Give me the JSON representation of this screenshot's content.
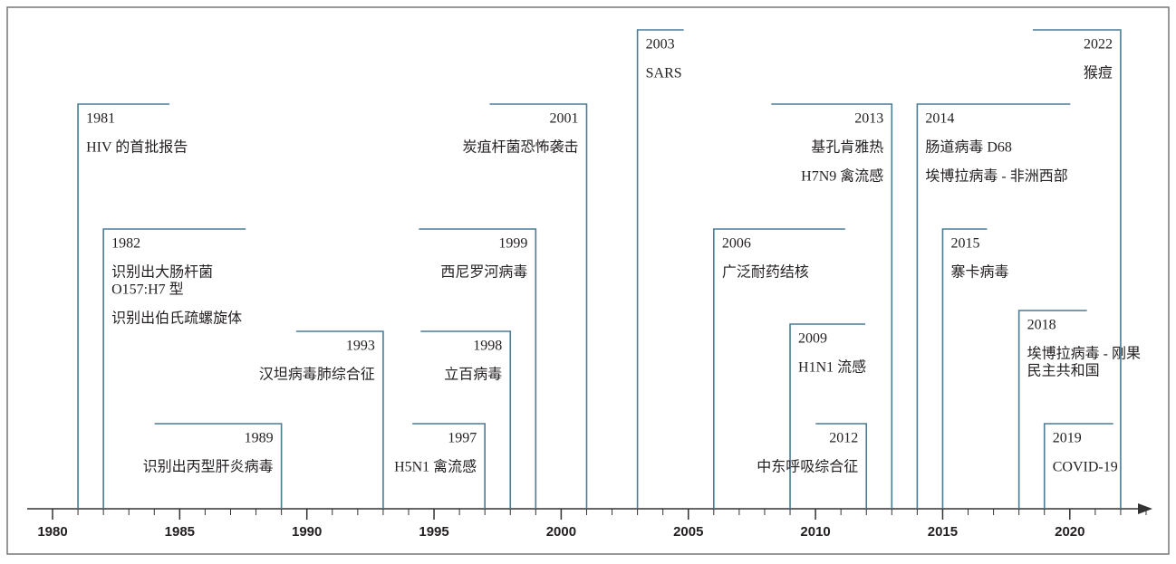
{
  "axis": {
    "ticks": [
      1980,
      1985,
      1990,
      1995,
      2000,
      2005,
      2010,
      2015,
      2020
    ]
  },
  "events": [
    {
      "year": 1981,
      "lines": [
        [
          "HIV 的首批报告"
        ]
      ]
    },
    {
      "year": 1982,
      "lines": [
        [
          "识别出大肠杆菌",
          "O157:H7 型"
        ],
        [
          "识别出伯氏疏螺旋体"
        ]
      ]
    },
    {
      "year": 1989,
      "lines": [
        [
          "识别出丙型肝炎病毒"
        ]
      ]
    },
    {
      "year": 1993,
      "lines": [
        [
          "汉坦病毒肺综合征"
        ]
      ]
    },
    {
      "year": 1997,
      "lines": [
        [
          "H5N1 禽流感"
        ]
      ]
    },
    {
      "year": 1998,
      "lines": [
        [
          "立百病毒"
        ]
      ]
    },
    {
      "year": 1999,
      "lines": [
        [
          "西尼罗河病毒"
        ]
      ]
    },
    {
      "year": 2001,
      "lines": [
        [
          "炭疽杆菌恐怖袭击"
        ]
      ]
    },
    {
      "year": 2003,
      "lines": [
        [
          "SARS"
        ]
      ]
    },
    {
      "year": 2006,
      "lines": [
        [
          "广泛耐药结核"
        ]
      ]
    },
    {
      "year": 2009,
      "lines": [
        [
          "H1N1 流感"
        ]
      ]
    },
    {
      "year": 2012,
      "lines": [
        [
          "中东呼吸综合征"
        ]
      ]
    },
    {
      "year": 2013,
      "lines": [
        [
          "基孔肯雅热"
        ],
        [
          "H7N9 禽流感"
        ]
      ]
    },
    {
      "year": 2014,
      "lines": [
        [
          "肠道病毒 D68"
        ],
        [
          "埃博拉病毒 - 非洲西部"
        ]
      ]
    },
    {
      "year": 2015,
      "lines": [
        [
          "寨卡病毒"
        ]
      ]
    },
    {
      "year": 2018,
      "lines": [
        [
          "埃博拉病毒 - 刚果",
          "民主共和国"
        ]
      ]
    },
    {
      "year": 2019,
      "lines": [
        [
          "COVID-19"
        ]
      ]
    },
    {
      "year": 2022,
      "lines": [
        [
          "猴痘"
        ]
      ]
    }
  ]
}
